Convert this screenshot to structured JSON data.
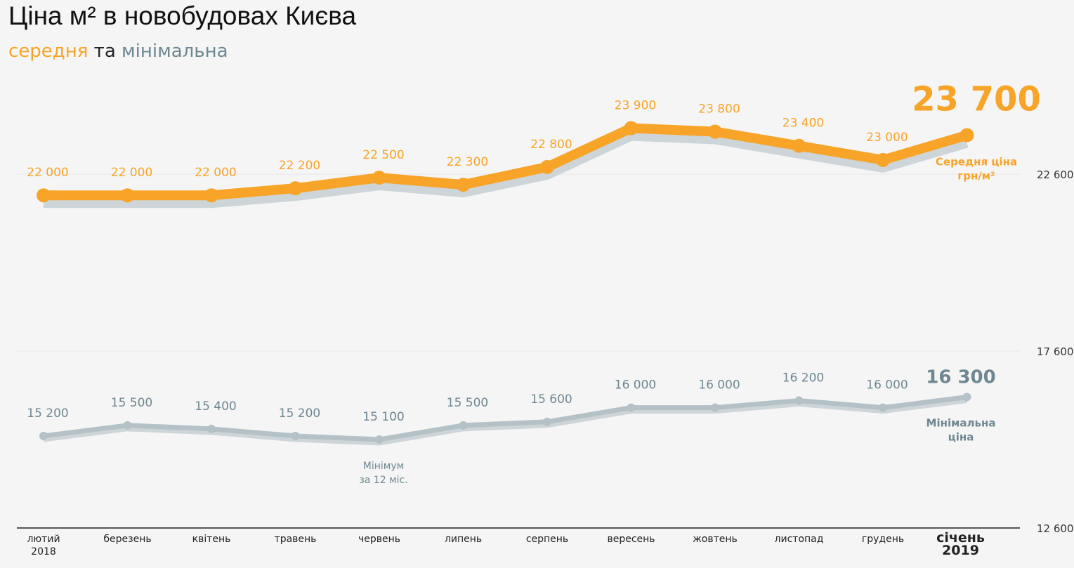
{
  "title": "Ціна м² в новобудовах Києва",
  "subtitle": {
    "part1": "середня",
    "part2": " та ",
    "part3": "мінімальна"
  },
  "chart_data": {
    "type": "line",
    "categories": [
      "лютий\n2018",
      "березень",
      "квітень",
      "травень",
      "червень",
      "липень",
      "серпень",
      "вересень",
      "жовтень",
      "листопад",
      "грудень",
      "січень\n2019"
    ],
    "series": [
      {
        "name": "Середня ціна\nгрн/м²",
        "color": "#f7a428",
        "values": [
          22000,
          22000,
          22000,
          22200,
          22500,
          22300,
          22800,
          23900,
          23800,
          23400,
          23000,
          23700
        ],
        "labels": [
          "22 000",
          "22 000",
          "22 000",
          "22 200",
          "22 500",
          "22 300",
          "22 800",
          "23 900",
          "23 800",
          "23 400",
          "23 000",
          "23 700"
        ]
      },
      {
        "name": "Мінімальна\nціна",
        "color": "#b4c2c7",
        "values": [
          15200,
          15500,
          15400,
          15200,
          15100,
          15500,
          15600,
          16000,
          16000,
          16200,
          16000,
          16300
        ],
        "labels": [
          "15 200",
          "15 500",
          "15 400",
          "15 200",
          "15 100",
          "15 500",
          "15 600",
          "16 000",
          "16 000",
          "16 200",
          "16 000",
          "16 300"
        ]
      }
    ],
    "annotations": [
      {
        "text": "Мінімум\nза 12 міс.",
        "category": "червень"
      }
    ],
    "yticks": [
      12600,
      17600,
      22600
    ],
    "ytick_labels": [
      "12 600",
      "17 600",
      "22 600"
    ],
    "ylim": [
      12600,
      24700
    ],
    "grid": true,
    "colors": {
      "average": "#f7a428",
      "minimum": "#b4c2c7",
      "minimum_text": "#6e8791",
      "shadow": "#cdd5d8"
    }
  }
}
